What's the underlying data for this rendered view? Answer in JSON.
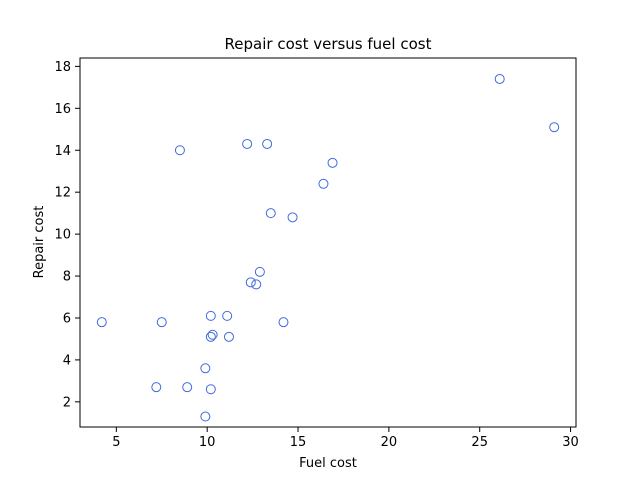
{
  "chart_data": {
    "type": "scatter",
    "title": "Repair cost versus fuel cost",
    "xlabel": "Fuel cost",
    "ylabel": "Repair cost",
    "xlim": [
      3.0,
      30.3
    ],
    "ylim": [
      0.8,
      18.4
    ],
    "xticks": [
      5,
      10,
      15,
      20,
      25,
      30
    ],
    "yticks": [
      2,
      4,
      6,
      8,
      10,
      12,
      14,
      16,
      18
    ],
    "grid": false,
    "marker": "open-circle",
    "color": "#4169e1",
    "series": [
      {
        "points": [
          {
            "x": 4.2,
            "y": 5.8
          },
          {
            "x": 7.2,
            "y": 2.7
          },
          {
            "x": 7.5,
            "y": 5.8
          },
          {
            "x": 8.5,
            "y": 14.0
          },
          {
            "x": 8.9,
            "y": 2.7
          },
          {
            "x": 9.9,
            "y": 3.6
          },
          {
            "x": 9.9,
            "y": 1.3
          },
          {
            "x": 10.2,
            "y": 6.1
          },
          {
            "x": 10.2,
            "y": 2.6
          },
          {
            "x": 10.2,
            "y": 5.1
          },
          {
            "x": 10.3,
            "y": 5.2
          },
          {
            "x": 11.1,
            "y": 6.1
          },
          {
            "x": 11.2,
            "y": 5.1
          },
          {
            "x": 12.2,
            "y": 14.3
          },
          {
            "x": 12.4,
            "y": 7.7
          },
          {
            "x": 12.7,
            "y": 7.6
          },
          {
            "x": 12.9,
            "y": 8.2
          },
          {
            "x": 13.3,
            "y": 14.3
          },
          {
            "x": 13.5,
            "y": 11.0
          },
          {
            "x": 14.2,
            "y": 5.8
          },
          {
            "x": 14.7,
            "y": 10.8
          },
          {
            "x": 16.4,
            "y": 12.4
          },
          {
            "x": 16.9,
            "y": 13.4
          },
          {
            "x": 26.1,
            "y": 17.4
          },
          {
            "x": 29.1,
            "y": 15.1
          }
        ]
      }
    ]
  }
}
